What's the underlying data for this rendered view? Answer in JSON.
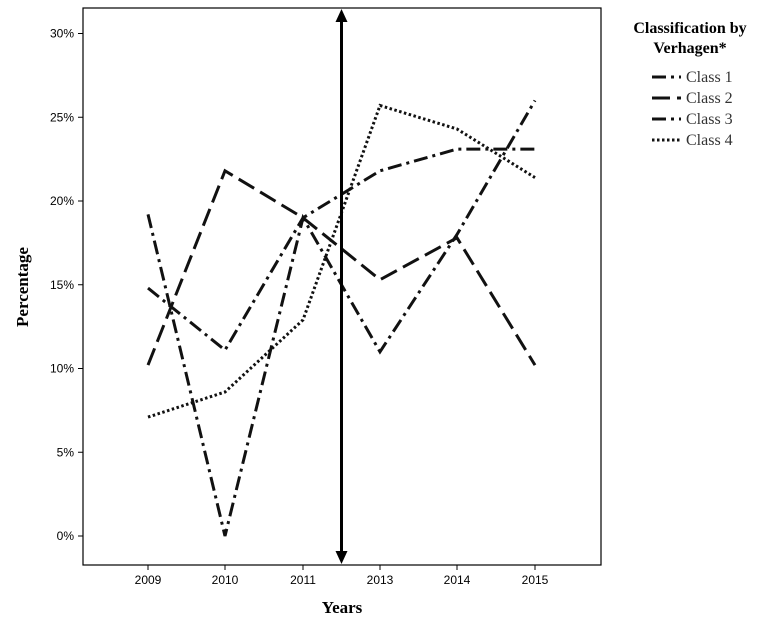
{
  "chart_data": {
    "type": "line",
    "xlabel": "Years",
    "ylabel": "Percentage",
    "categories": [
      "2009",
      "2010",
      "2011",
      "2013",
      "2014",
      "2015"
    ],
    "y_ticks": [
      "0%",
      "5%",
      "10%",
      "15%",
      "20%",
      "25%",
      "30%"
    ],
    "ylim": [
      -1.5,
      31.5
    ],
    "grid": false,
    "legend": {
      "title": [
        "Classification by",
        "Verhagen*"
      ],
      "placement": "right, outside plot"
    },
    "marker": {
      "type": "double-headed vertical arrow",
      "between": [
        "2011",
        "2013"
      ]
    },
    "series": [
      {
        "name": "Class 1",
        "dash": "dash-dot",
        "values": [
          19.2,
          0.0,
          19.0,
          11.0,
          18.0,
          26.0
        ]
      },
      {
        "name": "Class 2",
        "dash": "long-dash",
        "values": [
          10.2,
          21.8,
          19.0,
          15.3,
          17.8,
          10.2
        ]
      },
      {
        "name": "Class 3",
        "dash": "dash-dot",
        "values": [
          14.8,
          11.1,
          19.0,
          21.8,
          23.1,
          23.1
        ]
      },
      {
        "name": "Class 4",
        "dash": "dotted",
        "values": [
          7.1,
          8.6,
          12.9,
          25.7,
          24.3,
          21.4
        ]
      }
    ]
  }
}
